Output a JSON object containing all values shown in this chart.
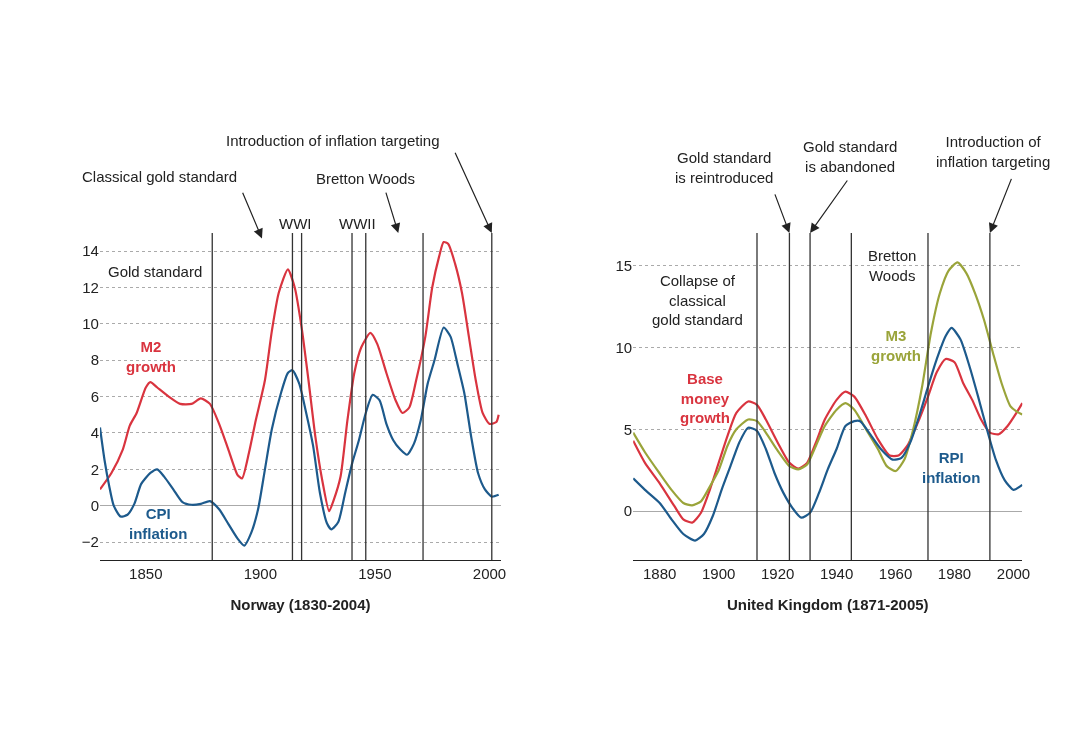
{
  "chart_data": [
    {
      "type": "line",
      "xlabel": "Norway (1830-2004)",
      "xlim": [
        1830,
        2005
      ],
      "xticks": [
        1850,
        1900,
        1950,
        2000
      ],
      "ylim": [
        -3,
        15
      ],
      "yticks": [
        {
          "value": -2,
          "label": "−2"
        },
        0,
        2,
        4,
        6,
        8,
        10,
        12,
        14
      ],
      "grid": "y",
      "marker": "none",
      "line_style": "solid",
      "series": [
        {
          "name": "M2 growth",
          "color": "#d9343f",
          "x": [
            1830,
            1835,
            1840,
            1843,
            1846,
            1850,
            1852,
            1855,
            1860,
            1865,
            1870,
            1874,
            1878,
            1882,
            1886,
            1890,
            1892,
            1895,
            1898,
            1902,
            1905,
            1908,
            1912,
            1915,
            1918,
            1921,
            1924,
            1927,
            1930,
            1932,
            1935,
            1938,
            1941,
            1944,
            1948,
            1951,
            1955,
            1959,
            1962,
            1965,
            1968,
            1972,
            1975,
            1978,
            1980,
            1982,
            1985,
            1988,
            1991,
            1994,
            1997,
            2000,
            2003,
            2004
          ],
          "values": [
            0.9,
            1.8,
            3.1,
            4.4,
            5.1,
            6.5,
            6.8,
            6.5,
            6.0,
            5.6,
            5.6,
            5.9,
            5.6,
            4.5,
            3.1,
            1.7,
            1.5,
            2.9,
            4.7,
            6.9,
            9.6,
            11.7,
            13.0,
            12.0,
            9.8,
            6.9,
            3.8,
            1.4,
            -0.3,
            0.3,
            1.6,
            4.7,
            7.3,
            8.7,
            9.5,
            8.9,
            7.3,
            5.8,
            5.1,
            5.4,
            6.9,
            9.3,
            12.0,
            13.7,
            14.5,
            14.4,
            13.3,
            11.7,
            9.3,
            6.9,
            5.1,
            4.5,
            4.6,
            5.0
          ]
        },
        {
          "name": "CPI inflation",
          "color": "#1d5a8c",
          "x": [
            1830,
            1832,
            1834,
            1836,
            1839,
            1842,
            1845,
            1848,
            1852,
            1855,
            1858,
            1862,
            1866,
            1870,
            1874,
            1878,
            1882,
            1886,
            1890,
            1893,
            1896,
            1899,
            1902,
            1905,
            1909,
            1912,
            1914,
            1917,
            1920,
            1923,
            1926,
            1929,
            1931,
            1934,
            1937,
            1940,
            1943,
            1946,
            1949,
            1952,
            1955,
            1958,
            1961,
            1964,
            1967,
            1970,
            1973,
            1976,
            1980,
            1983,
            1986,
            1989,
            1992,
            1995,
            1998,
            2001,
            2004
          ],
          "values": [
            4.3,
            2.5,
            1.1,
            0.0,
            -0.6,
            -0.5,
            0.1,
            1.2,
            1.8,
            2.0,
            1.6,
            0.9,
            0.2,
            0.05,
            0.1,
            0.25,
            -0.2,
            -1.0,
            -1.8,
            -2.2,
            -1.5,
            -0.2,
            2.0,
            4.2,
            6.2,
            7.3,
            7.45,
            6.7,
            5.1,
            3.3,
            0.7,
            -0.95,
            -1.3,
            -0.9,
            0.7,
            2.3,
            3.6,
            5.1,
            6.1,
            5.8,
            4.5,
            3.6,
            3.1,
            2.8,
            3.4,
            4.7,
            6.7,
            8.0,
            9.8,
            9.3,
            7.8,
            6.2,
            3.8,
            1.8,
            0.9,
            0.5,
            0.6
          ]
        }
      ],
      "ref_lines": [
        {
          "axis": "x",
          "value": 1879,
          "color": "#333333"
        },
        {
          "axis": "x",
          "value": 1914,
          "color": "#333333"
        },
        {
          "axis": "x",
          "value": 1918,
          "color": "#333333"
        },
        {
          "axis": "x",
          "value": 1940,
          "color": "#333333"
        },
        {
          "axis": "x",
          "value": 1946,
          "color": "#333333"
        },
        {
          "axis": "x",
          "value": 1971,
          "color": "#333333"
        },
        {
          "axis": "x",
          "value": 2001,
          "color": "#333333"
        }
      ],
      "annotations": [
        "Gold standard",
        "Classical gold standard",
        "Bretton Woods",
        {
          "text": "Introduction of inflation targeting",
          "x": 2001,
          "y": 15
        },
        "WWI",
        "WWII"
      ]
    },
    {
      "type": "line",
      "xlabel": "United Kingdom (1871-2005)",
      "xlim": [
        1871,
        2003
      ],
      "xticks": [
        1880,
        1900,
        1920,
        1940,
        1960,
        1980,
        2000
      ],
      "ylim": [
        -3,
        17
      ],
      "yticks": [
        0,
        5,
        10,
        15
      ],
      "grid": "y",
      "marker": "none",
      "line_style": "solid",
      "series": [
        {
          "name": "Base money growth",
          "color": "#d9343f",
          "x": [
            1871,
            1875,
            1880,
            1885,
            1888,
            1891,
            1894,
            1897,
            1900,
            1903,
            1906,
            1910,
            1913,
            1916,
            1920,
            1924,
            1927,
            1930,
            1933,
            1936,
            1940,
            1943,
            1946,
            1950,
            1954,
            1958,
            1961,
            1964,
            1968,
            1971,
            1974,
            1977,
            1980,
            1983,
            1986,
            1989,
            1992,
            1995,
            1998,
            2001,
            2003
          ],
          "values": [
            4.3,
            2.95,
            1.7,
            0.3,
            -0.5,
            -0.7,
            -0.1,
            1.3,
            2.95,
            4.6,
            6.0,
            6.7,
            6.5,
            5.6,
            4.2,
            2.95,
            2.6,
            2.95,
            4.2,
            5.6,
            6.8,
            7.3,
            7.0,
            5.8,
            4.4,
            3.4,
            3.4,
            4.0,
            5.6,
            7.0,
            8.5,
            9.3,
            9.1,
            7.8,
            6.8,
            5.6,
            4.8,
            4.7,
            5.2,
            6.0,
            6.6
          ]
        },
        {
          "name": "M3 growth",
          "color": "#9aa43a",
          "x": [
            1871,
            1875,
            1880,
            1884,
            1888,
            1891,
            1894,
            1897,
            1900,
            1903,
            1906,
            1910,
            1913,
            1916,
            1920,
            1924,
            1927,
            1930,
            1933,
            1936,
            1940,
            1943,
            1946,
            1950,
            1954,
            1957,
            1960,
            1963,
            1966,
            1969,
            1972,
            1975,
            1978,
            1981,
            1984,
            1987,
            1990,
            1993,
            1996,
            1999,
            2001,
            2003
          ],
          "values": [
            4.8,
            3.6,
            2.3,
            1.3,
            0.5,
            0.35,
            0.6,
            1.5,
            2.5,
            4.0,
            5.0,
            5.6,
            5.5,
            4.8,
            3.7,
            2.75,
            2.55,
            2.85,
            4.0,
            5.2,
            6.2,
            6.6,
            6.2,
            5.0,
            3.8,
            2.75,
            2.45,
            3.15,
            5.0,
            7.6,
            10.9,
            13.3,
            14.7,
            15.2,
            14.55,
            13.3,
            11.7,
            9.7,
            7.8,
            6.4,
            6.1,
            5.9
          ]
        },
        {
          "name": "RPI inflation",
          "color": "#1d5a8c",
          "x": [
            1871,
            1875,
            1880,
            1884,
            1888,
            1892,
            1895,
            1898,
            1901,
            1904,
            1907,
            1910,
            1913,
            1916,
            1919,
            1922,
            1925,
            1928,
            1931,
            1934,
            1937,
            1940,
            1943,
            1946,
            1948,
            1951,
            1955,
            1959,
            1962,
            1965,
            1968,
            1971,
            1974,
            1977,
            1979,
            1982,
            1985,
            1988,
            1991,
            1994,
            1997,
            2000,
            2003
          ],
          "values": [
            2.0,
            1.3,
            0.5,
            -0.5,
            -1.4,
            -1.8,
            -1.4,
            -0.3,
            1.3,
            2.75,
            4.2,
            5.1,
            4.9,
            3.8,
            2.3,
            1.1,
            0.2,
            -0.4,
            -0.1,
            1.1,
            2.55,
            3.8,
            5.2,
            5.5,
            5.5,
            4.8,
            3.8,
            3.15,
            3.25,
            4.2,
            5.8,
            7.6,
            9.3,
            10.7,
            11.2,
            10.5,
            8.9,
            7.0,
            5.0,
            3.15,
            1.9,
            1.3,
            1.6
          ]
        }
      ],
      "ref_lines": [
        {
          "axis": "x",
          "value": 1913,
          "color": "#333333"
        },
        {
          "axis": "x",
          "value": 1924,
          "color": "#333333"
        },
        {
          "axis": "x",
          "value": 1931,
          "color": "#333333"
        },
        {
          "axis": "x",
          "value": 1945,
          "color": "#333333"
        },
        {
          "axis": "x",
          "value": 1971,
          "color": "#333333"
        },
        {
          "axis": "x",
          "value": 1992,
          "color": "#333333"
        }
      ],
      "annotations": [
        "Collapse of\nclassical\ngold standard",
        {
          "text": "Gold standard\nis reintroduced",
          "x": 1924,
          "y": 17
        },
        {
          "text": "Gold standard\nis abandoned",
          "x": 1931,
          "y": 17
        },
        {
          "text": "Introduction of\ninflation targeting",
          "x": 1992,
          "y": 17
        },
        "Bretton\nWoods"
      ]
    }
  ]
}
